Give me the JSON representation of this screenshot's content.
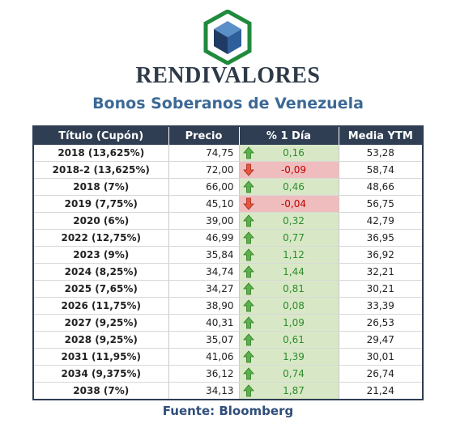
{
  "brand": {
    "name": "RENDIVALORES",
    "logo_icon": "cube-hexagon-logo-icon"
  },
  "title": "Bonos Soberanos de Venezuela",
  "table": {
    "headers": [
      "Título (Cupón)",
      "Precio",
      "% 1 Día",
      "Media YTM"
    ],
    "rows": [
      {
        "title": "2018 (13,625%)",
        "price": "74,75",
        "change": "0,16",
        "direction": "up",
        "ytm": "53,28"
      },
      {
        "title": "2018-2 (13,625%)",
        "price": "72,00",
        "change": "-0,09",
        "direction": "down",
        "ytm": "58,74"
      },
      {
        "title": "2018 (7%)",
        "price": "66,00",
        "change": "0,46",
        "direction": "up",
        "ytm": "48,66"
      },
      {
        "title": "2019 (7,75%)",
        "price": "45,10",
        "change": "-0,04",
        "direction": "down",
        "ytm": "56,75"
      },
      {
        "title": "2020 (6%)",
        "price": "39,00",
        "change": "0,32",
        "direction": "up",
        "ytm": "42,79"
      },
      {
        "title": "2022 (12,75%)",
        "price": "46,99",
        "change": "0,77",
        "direction": "up",
        "ytm": "36,95"
      },
      {
        "title": "2023 (9%)",
        "price": "35,84",
        "change": "1,12",
        "direction": "up",
        "ytm": "36,92"
      },
      {
        "title": "2024 (8,25%)",
        "price": "34,74",
        "change": "1,44",
        "direction": "up",
        "ytm": "32,21"
      },
      {
        "title": "2025 (7,65%)",
        "price": "34,27",
        "change": "0,81",
        "direction": "up",
        "ytm": "30,21"
      },
      {
        "title": "2026 (11,75%)",
        "price": "38,90",
        "change": "0,08",
        "direction": "up",
        "ytm": "33,39"
      },
      {
        "title": "2027 (9,25%)",
        "price": "40,31",
        "change": "1,09",
        "direction": "up",
        "ytm": "26,53"
      },
      {
        "title": "2028 (9,25%)",
        "price": "35,07",
        "change": "0,61",
        "direction": "up",
        "ytm": "29,47"
      },
      {
        "title": "2031 (11,95%)",
        "price": "41,06",
        "change": "1,39",
        "direction": "up",
        "ytm": "30,01"
      },
      {
        "title": "2034 (9,375%)",
        "price": "36,12",
        "change": "0,74",
        "direction": "up",
        "ytm": "26,74"
      },
      {
        "title": "2038 (7%)",
        "price": "34,13",
        "change": "1,87",
        "direction": "up",
        "ytm": "21,24"
      }
    ]
  },
  "source": "Fuente: Bloomberg",
  "colors": {
    "header_bg": "#2f3e52",
    "up_bg": "#d8e8c6",
    "up_text": "#2e8b2e",
    "down_bg": "#efbdbd",
    "down_text": "#c00000",
    "title_blue": "#3c6996"
  }
}
